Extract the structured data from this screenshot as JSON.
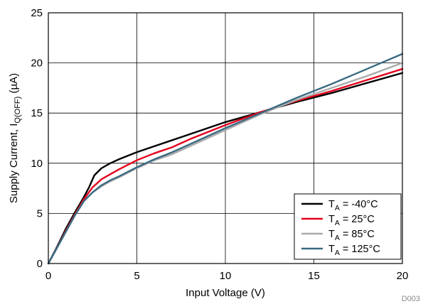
{
  "chart_data": {
    "type": "line",
    "title": "",
    "xlabel": "Input Voltage (V)",
    "ylabel": "Supply Current, I",
    "ylabel_sub": "Q(OFF)",
    "ylabel_unit": " (µA)",
    "xlim": [
      0,
      20
    ],
    "ylim": [
      0,
      25
    ],
    "xticks": [
      "0",
      "5",
      "10",
      "15",
      "20"
    ],
    "yticks": [
      "0",
      "5",
      "10",
      "15",
      "20",
      "25"
    ],
    "grid": true,
    "legend_position": "bottom-right",
    "series": [
      {
        "name": "T",
        "sub": "A",
        "label_rest": " = -40°C",
        "color": "#000000",
        "x": [
          0,
          0.5,
          1,
          1.5,
          2,
          2.3,
          2.6,
          3,
          3.5,
          4,
          5,
          6,
          7,
          8,
          10,
          12,
          14,
          16,
          18,
          20
        ],
        "y": [
          0,
          1.7,
          3.5,
          5.1,
          6.6,
          7.6,
          8.8,
          9.5,
          10.0,
          10.4,
          11.1,
          11.7,
          12.3,
          12.9,
          14.1,
          15.1,
          16.1,
          17.0,
          18.0,
          19.0
        ]
      },
      {
        "name": "T",
        "sub": "A",
        "label_rest": " = 25°C",
        "color": "#e3001b",
        "x": [
          0,
          0.5,
          1,
          1.5,
          2,
          2.5,
          3,
          3.5,
          4,
          5,
          6,
          7,
          8,
          10,
          12,
          14,
          16,
          18,
          20
        ],
        "y": [
          0,
          1.6,
          3.3,
          4.9,
          6.4,
          7.6,
          8.4,
          8.9,
          9.4,
          10.3,
          11.0,
          11.6,
          12.4,
          13.8,
          15.1,
          16.2,
          17.2,
          18.3,
          19.4
        ]
      },
      {
        "name": "T",
        "sub": "A",
        "label_rest": " = 85°C",
        "color": "#aaaaaa",
        "x": [
          0,
          0.5,
          1,
          1.5,
          2,
          2.5,
          3,
          3.5,
          4,
          5,
          6,
          7,
          8,
          10,
          12,
          14,
          16,
          18,
          20
        ],
        "y": [
          0,
          1.6,
          3.2,
          4.8,
          6.2,
          7.1,
          7.7,
          8.2,
          8.6,
          9.5,
          10.3,
          10.9,
          11.7,
          13.3,
          14.9,
          16.3,
          17.5,
          18.7,
          20.0
        ]
      },
      {
        "name": "T",
        "sub": "A",
        "label_rest": " = 125°C",
        "color": "#3a6a82",
        "x": [
          0,
          0.5,
          1,
          1.5,
          2,
          2.5,
          3,
          3.5,
          4,
          5,
          6,
          7,
          8,
          10,
          12,
          14,
          16,
          18,
          20
        ],
        "y": [
          0,
          1.6,
          3.2,
          4.8,
          6.2,
          7.1,
          7.8,
          8.3,
          8.7,
          9.6,
          10.4,
          11.1,
          11.9,
          13.5,
          15.0,
          16.5,
          17.9,
          19.4,
          20.9
        ]
      }
    ]
  },
  "footer": {
    "code": "D003"
  }
}
